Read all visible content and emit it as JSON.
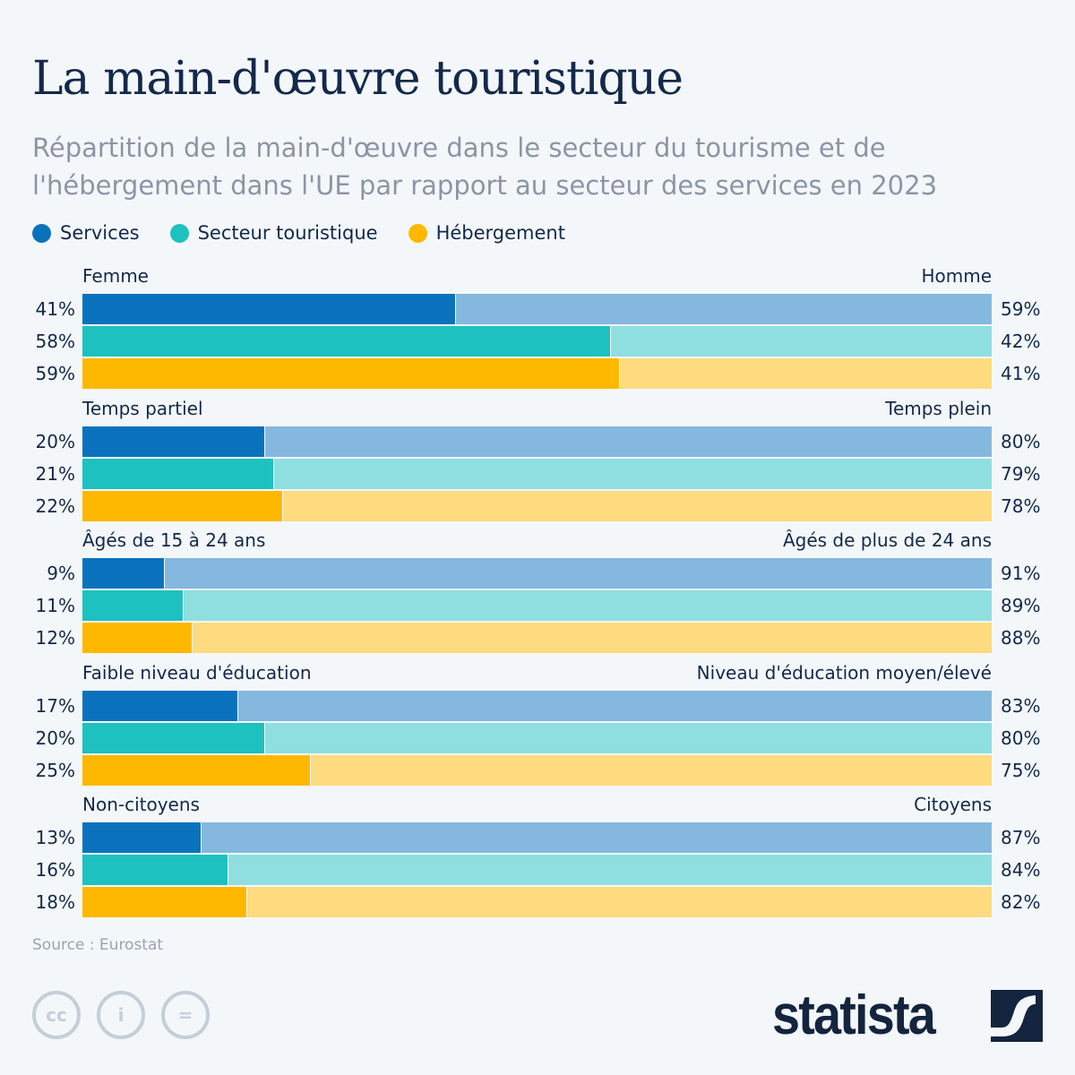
{
  "title": "La main-d'œuvre touristique",
  "subtitle": "Répartition de la main-d'œuvre dans le secteur du tourisme et de l'hébergement dans l'UE par rapport au secteur des services en 2023",
  "source": "Source : Eurostat",
  "brand": "statista",
  "license_icons": [
    "cc-icon",
    "attribution-icon",
    "no-derivatives-icon"
  ],
  "chart_data": {
    "type": "bar",
    "stacked": true,
    "orientation": "horizontal",
    "xlim": [
      0,
      100
    ],
    "legend_position": "top-left",
    "series": [
      {
        "name": "Services",
        "color": "#0a72bd",
        "light_color": "#84b8de"
      },
      {
        "name": "Secteur touristique",
        "color": "#1dc1bf",
        "light_color": "#8fdfe0"
      },
      {
        "name": "Hébergement",
        "color": "#ffb800",
        "light_color": "#ffdb80"
      }
    ],
    "groups": [
      {
        "left_label": "Femme",
        "right_label": "Homme",
        "left_values": [
          41,
          58,
          59
        ],
        "right_values": [
          59,
          42,
          41
        ]
      },
      {
        "left_label": "Temps partiel",
        "right_label": "Temps plein",
        "left_values": [
          20,
          21,
          22
        ],
        "right_values": [
          80,
          79,
          78
        ]
      },
      {
        "left_label": "Âgés de 15 à 24 ans",
        "right_label": "Âgés de plus de 24 ans",
        "left_values": [
          9,
          11,
          12
        ],
        "right_values": [
          91,
          89,
          88
        ]
      },
      {
        "left_label": "Faible niveau d'éducation",
        "right_label": "Niveau d'éducation moyen/élevé",
        "left_values": [
          17,
          20,
          25
        ],
        "right_values": [
          83,
          80,
          75
        ]
      },
      {
        "left_label": "Non-citoyens",
        "right_label": "Citoyens",
        "left_values": [
          13,
          16,
          18
        ],
        "right_values": [
          87,
          84,
          82
        ]
      }
    ]
  }
}
